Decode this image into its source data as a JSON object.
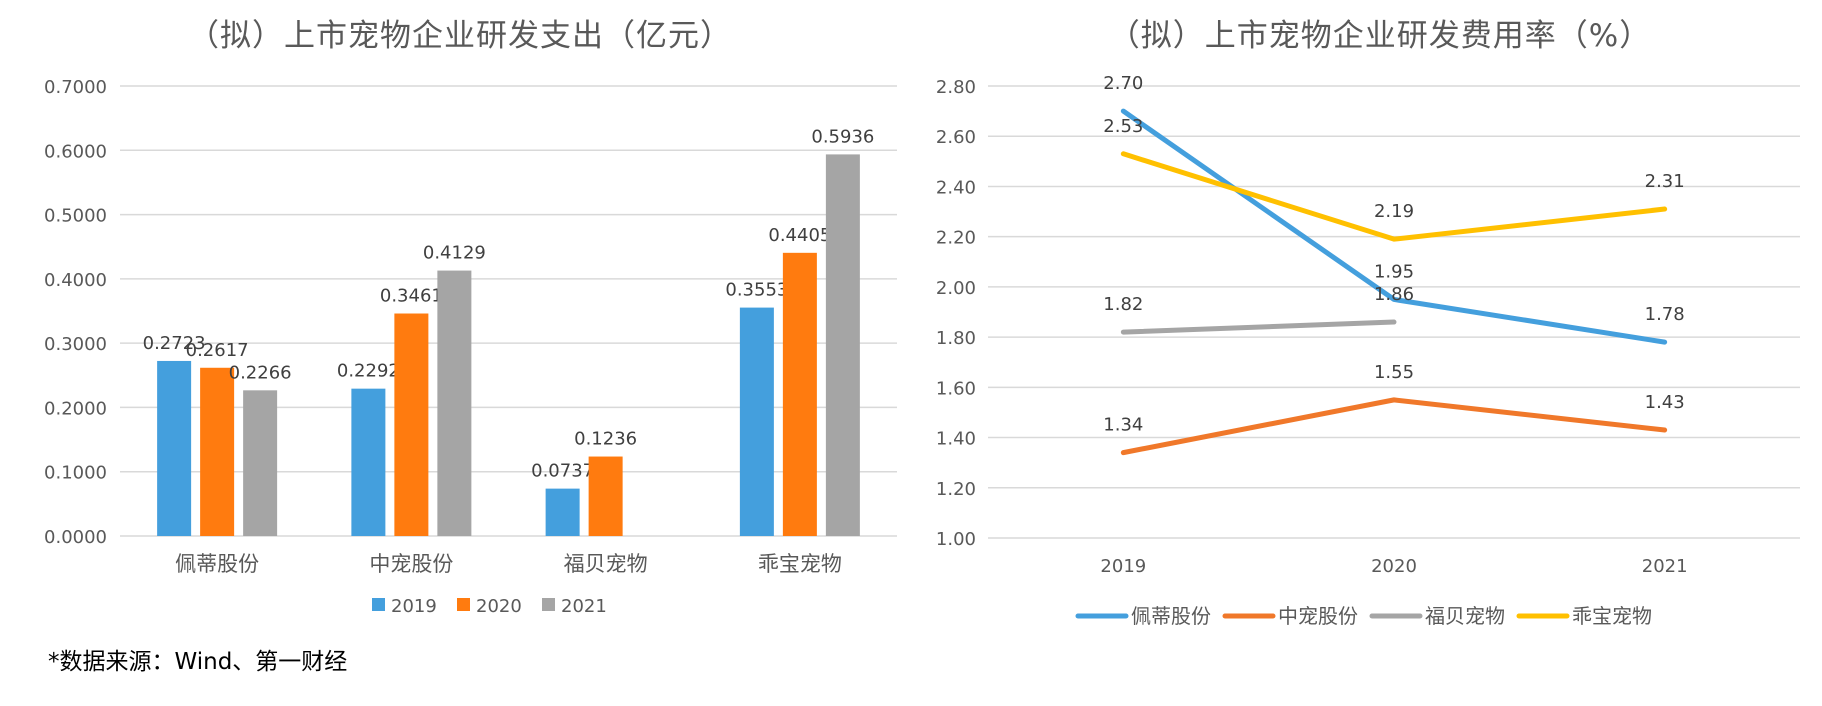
{
  "chart_data": [
    {
      "type": "bar",
      "title": "（拟）上市宠物企业研发支出（亿元）",
      "categories": [
        "佩蒂股份",
        "中宠股份",
        "福贝宠物",
        "乖宝宠物"
      ],
      "series": [
        {
          "name": "2019",
          "color": "#449FDD",
          "values": [
            0.2723,
            0.2292,
            0.0737,
            0.3553
          ]
        },
        {
          "name": "2020",
          "color": "#FF7B0F",
          "values": [
            0.2617,
            0.3461,
            0.1236,
            0.4405
          ]
        },
        {
          "name": "2021",
          "color": "#A5A5A5",
          "values": [
            0.2266,
            0.4129,
            null,
            0.5936
          ]
        }
      ],
      "value_labels": [
        [
          "0.2723",
          "0.2292",
          "0.0737",
          "0.3553"
        ],
        [
          "0.2617",
          "0.3461",
          "0.1236",
          "0.4405"
        ],
        [
          "0.2266",
          "0.4129",
          "",
          "0.5936"
        ]
      ],
      "ylim": [
        0,
        0.7
      ],
      "yticks": [
        0,
        0.1,
        0.2,
        0.3,
        0.4,
        0.5,
        0.6,
        0.7
      ],
      "ytick_labels": [
        "0.0000",
        "0.1000",
        "0.2000",
        "0.3000",
        "0.4000",
        "0.5000",
        "0.6000",
        "0.7000"
      ],
      "grid": true,
      "legend": "bottom"
    },
    {
      "type": "line",
      "title": "（拟）上市宠物企业研发费用率（%）",
      "x": [
        "2019",
        "2020",
        "2021"
      ],
      "series": [
        {
          "name": "佩蒂股份",
          "color": "#449FDD",
          "values": [
            2.7,
            1.95,
            1.78
          ],
          "labels": [
            "2.70",
            "1.95",
            "1.78"
          ]
        },
        {
          "name": "中宠股份",
          "color": "#F0782A",
          "values": [
            1.34,
            1.55,
            1.43
          ],
          "labels": [
            "1.34",
            "1.55",
            "1.43"
          ]
        },
        {
          "name": "福贝宠物",
          "color": "#A5A5A5",
          "values": [
            1.82,
            1.86,
            null
          ],
          "labels": [
            "1.82",
            "1.86",
            ""
          ]
        },
        {
          "name": "乖宝宠物",
          "color": "#FFC000",
          "values": [
            2.53,
            2.19,
            2.31
          ],
          "labels": [
            "2.53",
            "2.19",
            "2.31"
          ]
        }
      ],
      "ylim": [
        1.0,
        2.8
      ],
      "yticks": [
        1.0,
        1.2,
        1.4,
        1.6,
        1.8,
        2.0,
        2.2,
        2.4,
        2.6,
        2.8
      ],
      "ytick_labels": [
        "1.00",
        "1.20",
        "1.40",
        "1.60",
        "1.80",
        "2.00",
        "2.20",
        "2.40",
        "2.60",
        "2.80"
      ],
      "grid": true,
      "legend": "bottom"
    }
  ],
  "source_note": "*数据来源：Wind、第一财经"
}
